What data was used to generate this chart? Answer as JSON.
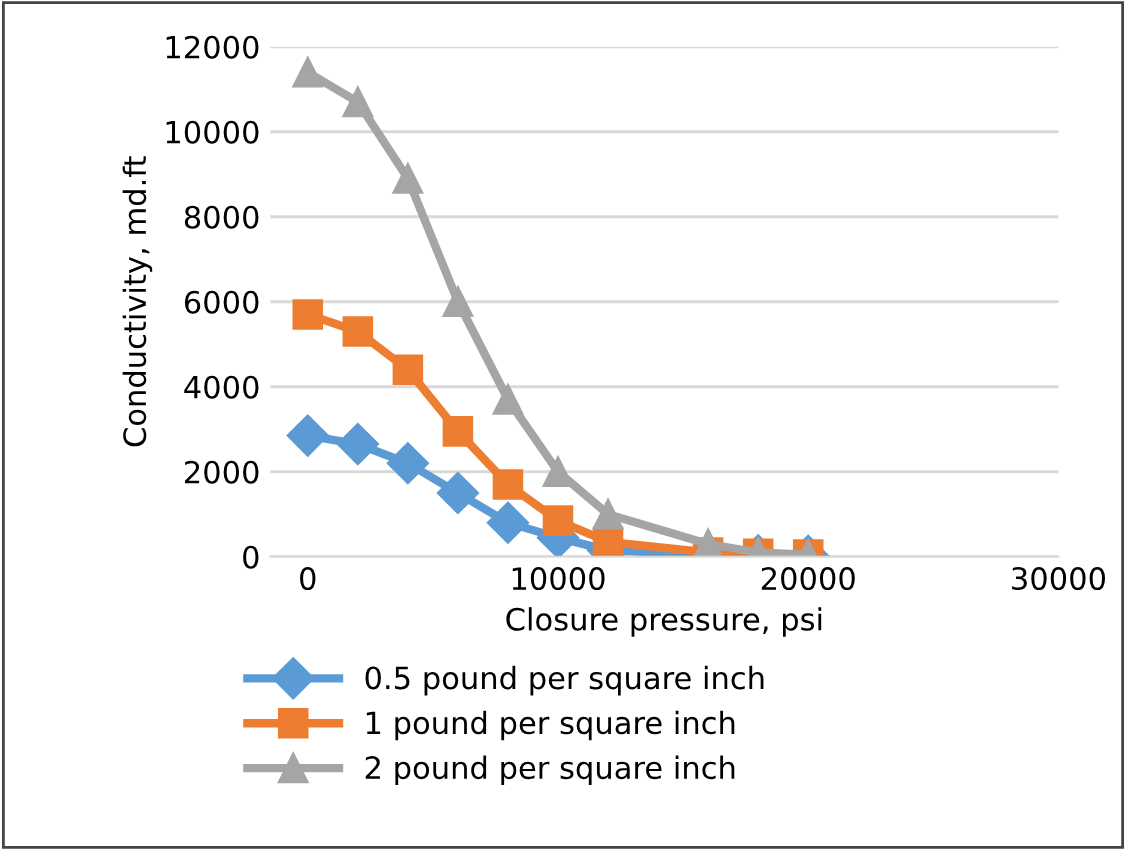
{
  "chart_data": {
    "type": "line",
    "xlabel": "Closure pressure, psi",
    "ylabel": "Conductivity, md.ft",
    "x": [
      0,
      2000,
      4000,
      6000,
      8000,
      10000,
      12000,
      16000,
      18000,
      20000
    ],
    "series": [
      {
        "name": "0.5 pound per square inch",
        "color": "#5b9bd5",
        "marker": "diamond",
        "values": [
          2850,
          2650,
          2200,
          1500,
          800,
          450,
          150,
          50,
          30,
          20
        ]
      },
      {
        "name": "1 pound per square inch",
        "color": "#ed7d31",
        "marker": "square",
        "values": [
          5700,
          5300,
          4400,
          2950,
          1700,
          850,
          350,
          100,
          70,
          50
        ]
      },
      {
        "name": "2 pound per square inch",
        "color": "#a5a5a5",
        "marker": "triangle",
        "values": [
          11400,
          10700,
          8900,
          6000,
          3700,
          2000,
          1000,
          300,
          100,
          50
        ]
      }
    ],
    "xlim": [
      -1500,
      30000
    ],
    "xticks": [
      0,
      10000,
      20000,
      30000
    ],
    "ylim": [
      0,
      12000
    ],
    "yticks": [
      0,
      2000,
      4000,
      6000,
      8000,
      10000,
      12000
    ],
    "grid": "y",
    "legend": "bottom",
    "line_style": "solid"
  }
}
